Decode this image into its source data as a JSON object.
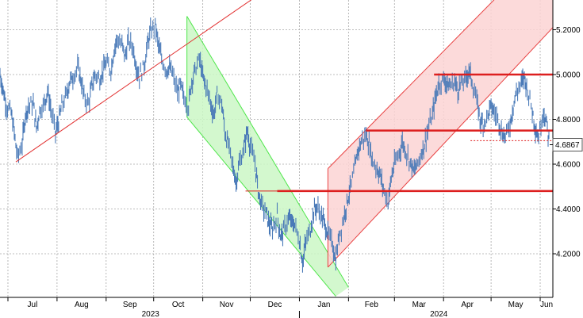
{
  "chart_data": {
    "type": "line",
    "title": "",
    "xlabel": "",
    "ylabel": "",
    "ylim": [
      4.0,
      5.3
    ],
    "y_ticks": [
      4.2,
      4.4,
      4.6,
      4.8,
      5.0,
      5.2
    ],
    "y_tick_labels": [
      "4.2000",
      "4.4000",
      "4.6000",
      "4.8000",
      "5.0000",
      "5.2000"
    ],
    "x_range": [
      "2023-06-26",
      "2024-06-07"
    ],
    "months": [
      {
        "label": "Jul",
        "date": "2023-07-01"
      },
      {
        "label": "Aug",
        "date": "2023-08-01"
      },
      {
        "label": "Sep",
        "date": "2023-09-01"
      },
      {
        "label": "Oct",
        "date": "2023-10-01"
      },
      {
        "label": "Nov",
        "date": "2023-11-01"
      },
      {
        "label": "Dec",
        "date": "2023-12-01"
      },
      {
        "label": "Jan",
        "date": "2024-01-01"
      },
      {
        "label": "Feb",
        "date": "2024-02-01"
      },
      {
        "label": "Mar",
        "date": "2024-03-01"
      },
      {
        "label": "Apr",
        "date": "2024-04-01"
      },
      {
        "label": "May",
        "date": "2024-05-01"
      },
      {
        "label": "Jun",
        "date": "2024-06-01"
      }
    ],
    "years": [
      {
        "label": "2023",
        "date": "2023-09-29"
      },
      {
        "label": "2024",
        "date": "2024-03-29"
      }
    ],
    "year_divider_date": "2024-01-01",
    "last_price": 4.6867,
    "last_price_label": "4.6867",
    "grid": true,
    "colors": {
      "price": "#4a7ab8",
      "trend_line": "#e23030",
      "green_channel_fill": "#cbf7c6",
      "green_channel_line": "#4ee64a",
      "red_channel_fill": "#fbd4d4",
      "red_channel_line": "#e84040",
      "level_line": "#dd1f1f",
      "grid": "#a8a8a8"
    },
    "series": [
      {
        "values": [
          [
            "2023-06-26",
            5.0
          ],
          [
            "2023-06-28",
            4.93
          ],
          [
            "2023-06-30",
            4.86
          ],
          [
            "2023-07-03",
            4.83
          ],
          [
            "2023-07-05",
            4.74
          ],
          [
            "2023-07-07",
            4.63
          ],
          [
            "2023-07-10",
            4.69
          ],
          [
            "2023-07-12",
            4.82
          ],
          [
            "2023-07-14",
            4.86
          ],
          [
            "2023-07-17",
            4.87
          ],
          [
            "2023-07-19",
            4.76
          ],
          [
            "2023-07-21",
            4.84
          ],
          [
            "2023-07-24",
            4.87
          ],
          [
            "2023-07-26",
            4.93
          ],
          [
            "2023-07-28",
            4.85
          ],
          [
            "2023-07-31",
            4.74
          ],
          [
            "2023-08-02",
            4.79
          ],
          [
            "2023-08-04",
            4.86
          ],
          [
            "2023-08-07",
            4.91
          ],
          [
            "2023-08-09",
            4.97
          ],
          [
            "2023-08-11",
            4.99
          ],
          [
            "2023-08-14",
            5.03
          ],
          [
            "2023-08-16",
            4.98
          ],
          [
            "2023-08-18",
            4.9
          ],
          [
            "2023-08-21",
            4.87
          ],
          [
            "2023-08-23",
            4.95
          ],
          [
            "2023-08-25",
            5.0
          ],
          [
            "2023-08-28",
            4.98
          ],
          [
            "2023-08-30",
            5.02
          ],
          [
            "2023-09-01",
            5.05
          ],
          [
            "2023-09-04",
            5.02
          ],
          [
            "2023-09-06",
            5.11
          ],
          [
            "2023-09-08",
            5.16
          ],
          [
            "2023-09-11",
            5.13
          ],
          [
            "2023-09-13",
            5.08
          ],
          [
            "2023-09-15",
            5.15
          ],
          [
            "2023-09-18",
            5.12
          ],
          [
            "2023-09-20",
            5.04
          ],
          [
            "2023-09-22",
            4.99
          ],
          [
            "2023-09-25",
            5.04
          ],
          [
            "2023-09-27",
            5.13
          ],
          [
            "2023-09-29",
            5.19
          ],
          [
            "2023-10-02",
            5.22
          ],
          [
            "2023-10-04",
            5.13
          ],
          [
            "2023-10-06",
            5.07
          ],
          [
            "2023-10-09",
            5.02
          ],
          [
            "2023-10-11",
            5.03
          ],
          [
            "2023-10-13",
            5.0
          ],
          [
            "2023-10-16",
            4.92
          ],
          [
            "2023-10-18",
            4.95
          ],
          [
            "2023-10-20",
            4.9
          ],
          [
            "2023-10-23",
            4.86
          ],
          [
            "2023-10-25",
            4.97
          ],
          [
            "2023-10-27",
            5.02
          ],
          [
            "2023-10-30",
            5.07
          ],
          [
            "2023-11-01",
            4.99
          ],
          [
            "2023-11-03",
            4.95
          ],
          [
            "2023-11-06",
            4.87
          ],
          [
            "2023-11-08",
            4.82
          ],
          [
            "2023-11-10",
            4.91
          ],
          [
            "2023-11-13",
            4.87
          ],
          [
            "2023-11-15",
            4.74
          ],
          [
            "2023-11-17",
            4.69
          ],
          [
            "2023-11-20",
            4.59
          ],
          [
            "2023-11-22",
            4.52
          ],
          [
            "2023-11-24",
            4.6
          ],
          [
            "2023-11-27",
            4.67
          ],
          [
            "2023-11-29",
            4.75
          ],
          [
            "2023-12-01",
            4.68
          ],
          [
            "2023-12-04",
            4.6
          ],
          [
            "2023-12-06",
            4.48
          ],
          [
            "2023-12-08",
            4.42
          ],
          [
            "2023-12-11",
            4.38
          ],
          [
            "2023-12-13",
            4.33
          ],
          [
            "2023-12-15",
            4.31
          ],
          [
            "2023-12-18",
            4.37
          ],
          [
            "2023-12-20",
            4.28
          ],
          [
            "2023-12-22",
            4.3
          ],
          [
            "2023-12-25",
            4.36
          ],
          [
            "2023-12-27",
            4.34
          ],
          [
            "2023-12-29",
            4.33
          ],
          [
            "2024-01-01",
            4.26
          ],
          [
            "2024-01-03",
            4.16
          ],
          [
            "2024-01-05",
            4.25
          ],
          [
            "2024-01-08",
            4.31
          ],
          [
            "2024-01-10",
            4.39
          ],
          [
            "2024-01-12",
            4.41
          ],
          [
            "2024-01-15",
            4.37
          ],
          [
            "2024-01-17",
            4.33
          ],
          [
            "2024-01-19",
            4.29
          ],
          [
            "2024-01-22",
            4.24
          ],
          [
            "2024-01-24",
            4.17
          ],
          [
            "2024-01-26",
            4.28
          ],
          [
            "2024-01-29",
            4.36
          ],
          [
            "2024-01-31",
            4.43
          ],
          [
            "2024-02-02",
            4.49
          ],
          [
            "2024-02-05",
            4.58
          ],
          [
            "2024-02-07",
            4.66
          ],
          [
            "2024-02-09",
            4.7
          ],
          [
            "2024-02-12",
            4.73
          ],
          [
            "2024-02-14",
            4.69
          ],
          [
            "2024-02-16",
            4.62
          ],
          [
            "2024-02-19",
            4.58
          ],
          [
            "2024-02-21",
            4.55
          ],
          [
            "2024-02-23",
            4.49
          ],
          [
            "2024-02-26",
            4.43
          ],
          [
            "2024-02-28",
            4.54
          ],
          [
            "2024-03-01",
            4.6
          ],
          [
            "2024-03-04",
            4.65
          ],
          [
            "2024-03-06",
            4.7
          ],
          [
            "2024-03-08",
            4.66
          ],
          [
            "2024-03-11",
            4.61
          ],
          [
            "2024-03-13",
            4.57
          ],
          [
            "2024-03-15",
            4.59
          ],
          [
            "2024-03-18",
            4.65
          ],
          [
            "2024-03-20",
            4.69
          ],
          [
            "2024-03-22",
            4.75
          ],
          [
            "2024-03-25",
            4.82
          ],
          [
            "2024-03-27",
            4.9
          ],
          [
            "2024-03-29",
            4.96
          ],
          [
            "2024-04-01",
            4.98
          ],
          [
            "2024-04-03",
            4.96
          ],
          [
            "2024-04-05",
            4.95
          ],
          [
            "2024-04-08",
            4.97
          ],
          [
            "2024-04-10",
            4.93
          ],
          [
            "2024-04-12",
            4.96
          ],
          [
            "2024-04-15",
            4.98
          ],
          [
            "2024-04-17",
            5.02
          ],
          [
            "2024-04-19",
            4.97
          ],
          [
            "2024-04-22",
            4.88
          ],
          [
            "2024-04-24",
            4.8
          ],
          [
            "2024-04-26",
            4.78
          ],
          [
            "2024-04-29",
            4.82
          ],
          [
            "2024-05-01",
            4.86
          ],
          [
            "2024-05-03",
            4.83
          ],
          [
            "2024-05-06",
            4.79
          ],
          [
            "2024-05-08",
            4.74
          ],
          [
            "2024-05-10",
            4.72
          ],
          [
            "2024-05-13",
            4.78
          ],
          [
            "2024-05-15",
            4.86
          ],
          [
            "2024-05-17",
            4.92
          ],
          [
            "2024-05-20",
            4.96
          ],
          [
            "2024-05-22",
            4.99
          ],
          [
            "2024-05-24",
            4.93
          ],
          [
            "2024-05-27",
            4.84
          ],
          [
            "2024-05-29",
            4.76
          ],
          [
            "2024-05-31",
            4.72
          ],
          [
            "2024-06-03",
            4.84
          ],
          [
            "2024-06-05",
            4.78
          ],
          [
            "2024-06-07",
            4.69
          ]
        ]
      }
    ],
    "annotations": {
      "trend_line": {
        "from": [
          "2023-07-06",
          4.61
        ],
        "to": [
          "2023-12-05",
          5.35
        ]
      },
      "green_channel": {
        "upper_from": [
          "2023-10-22",
          5.26
        ],
        "upper_to": [
          "2024-02-01",
          4.05
        ],
        "lower_from": [
          "2023-10-22",
          4.81
        ],
        "lower_to": [
          "2024-01-24",
          4.01
        ]
      },
      "red_channel": {
        "upper_from": [
          "2024-01-19",
          4.58
        ],
        "upper_to": [
          "2024-06-09",
          5.6
        ],
        "lower_from": [
          "2024-01-19",
          4.14
        ],
        "lower_to": [
          "2024-06-09",
          5.21
        ]
      },
      "levels": [
        {
          "value": 4.48,
          "from": "2023-11-28",
          "to": "2024-06-09",
          "thick_from": "2023-12-18"
        },
        {
          "value": 4.75,
          "from": "2024-02-12",
          "to": "2024-06-09"
        },
        {
          "value": 5.0,
          "from": "2024-03-26",
          "to": "2024-06-09"
        },
        {
          "value": 4.705,
          "from": "2024-04-18",
          "to": "2024-06-09",
          "style": "dotted"
        }
      ]
    }
  }
}
